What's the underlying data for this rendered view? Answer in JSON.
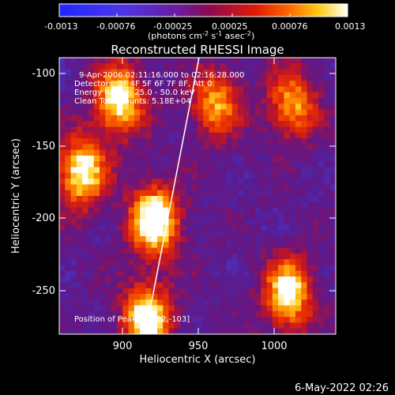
{
  "colorbar": {
    "ticks": [
      "-0.0013",
      "-0.00076",
      "-0.00025",
      "0.00025",
      "0.00076",
      "0.0013"
    ],
    "unit_main": "(photons cm",
    "unit_sup1": "-2",
    "unit_mid1": " s",
    "unit_sup2": "-1",
    "unit_mid2": " asec",
    "unit_sup3": "-2",
    "unit_end": ")"
  },
  "plot": {
    "title": "Reconstructed RHESSI Image",
    "xlabel": "Heliocentric X (arcsec)",
    "ylabel": "Heliocentric Y (arcsec)",
    "x_ticks": [
      "900",
      "950",
      "1000"
    ],
    "y_ticks": [
      "-100",
      "-150",
      "-200",
      "-250"
    ],
    "annotations": [
      "9-Apr-2006 02:11:16.000 to 02:16:28.000",
      "Detectors: 3F 4F 5F 6F 7F 8F, Att 0",
      "Energy Range: 25.0 - 50.0 keV",
      "Clean     Total counts: 5.18E+04"
    ],
    "peak_label": "Position of Peak = [852,-103]"
  },
  "footer": {
    "timestamp": "6-May-2022 02:26"
  },
  "chart_data": {
    "type": "heatmap",
    "title": "Reconstructed RHESSI Image",
    "xlabel": "Heliocentric X (arcsec)",
    "ylabel": "Heliocentric Y (arcsec)",
    "xlim": [
      861,
      1041
    ],
    "ylim": [
      -283,
      -93
    ],
    "color_range": [
      -0.0013,
      0.0013
    ],
    "colorscale": "blue-purple-red-yellow-white",
    "peak_position": [
      852,
      -103
    ],
    "limb_line": {
      "x": [
        917,
        952
      ],
      "y": [
        -283,
        -93
      ]
    },
    "bright_regions": [
      {
        "x": 876,
        "y": -172,
        "level": "high"
      },
      {
        "x": 900,
        "y": -122,
        "level": "high"
      },
      {
        "x": 923,
        "y": -205,
        "level": "peak"
      },
      {
        "x": 918,
        "y": -272,
        "level": "high"
      },
      {
        "x": 963,
        "y": -125,
        "level": "medium"
      },
      {
        "x": 1010,
        "y": -255,
        "level": "high"
      },
      {
        "x": 1013,
        "y": -125,
        "level": "medium"
      }
    ]
  },
  "colors": {
    "background": "#000000",
    "text": "#ffffff",
    "colormap_low": "#2a3cff",
    "colormap_mid": "#4b1e96",
    "colormap_high": "#ff4400",
    "colormap_top": "#ffffff"
  }
}
